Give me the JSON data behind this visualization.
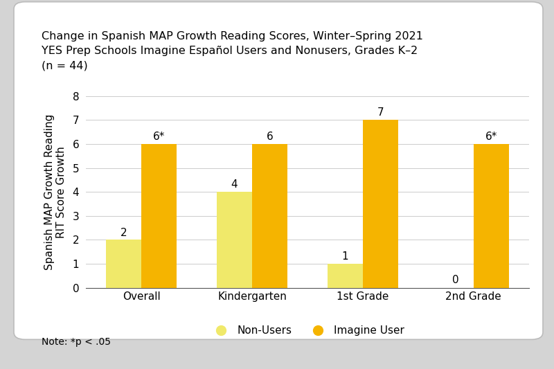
{
  "title_line1": "Change in Spanish MAP Growth Reading Scores, Winter–Spring 2021",
  "title_line2": "YES Prep Schools Imagine Español Users and Nonusers, Grades K–2",
  "title_line3": "(n = 44)",
  "categories": [
    "Overall",
    "Kindergarten",
    "1st Grade",
    "2nd Grade"
  ],
  "nonuser_values": [
    2,
    4,
    1,
    0
  ],
  "user_values": [
    6,
    6,
    7,
    6
  ],
  "nonuser_labels": [
    "2",
    "4",
    "1",
    "0"
  ],
  "user_labels": [
    "6*",
    "6",
    "7",
    "6*"
  ],
  "nonuser_color": "#f0e96a",
  "user_color": "#f5b400",
  "ylabel_line1": "Spanish MAP Growth Reading",
  "ylabel_line2": "RIT Score Growth",
  "ylim": [
    0,
    8
  ],
  "yticks": [
    0,
    1,
    2,
    3,
    4,
    5,
    6,
    7,
    8
  ],
  "legend_nonuser": "Non-Users",
  "legend_user": "Imagine User",
  "note": "Note: *p < .05",
  "bar_width": 0.32,
  "outer_bg": "#d4d4d4",
  "panel_color": "#ffffff",
  "title_fontsize": 11.5,
  "label_fontsize": 11,
  "tick_fontsize": 11,
  "note_fontsize": 10
}
